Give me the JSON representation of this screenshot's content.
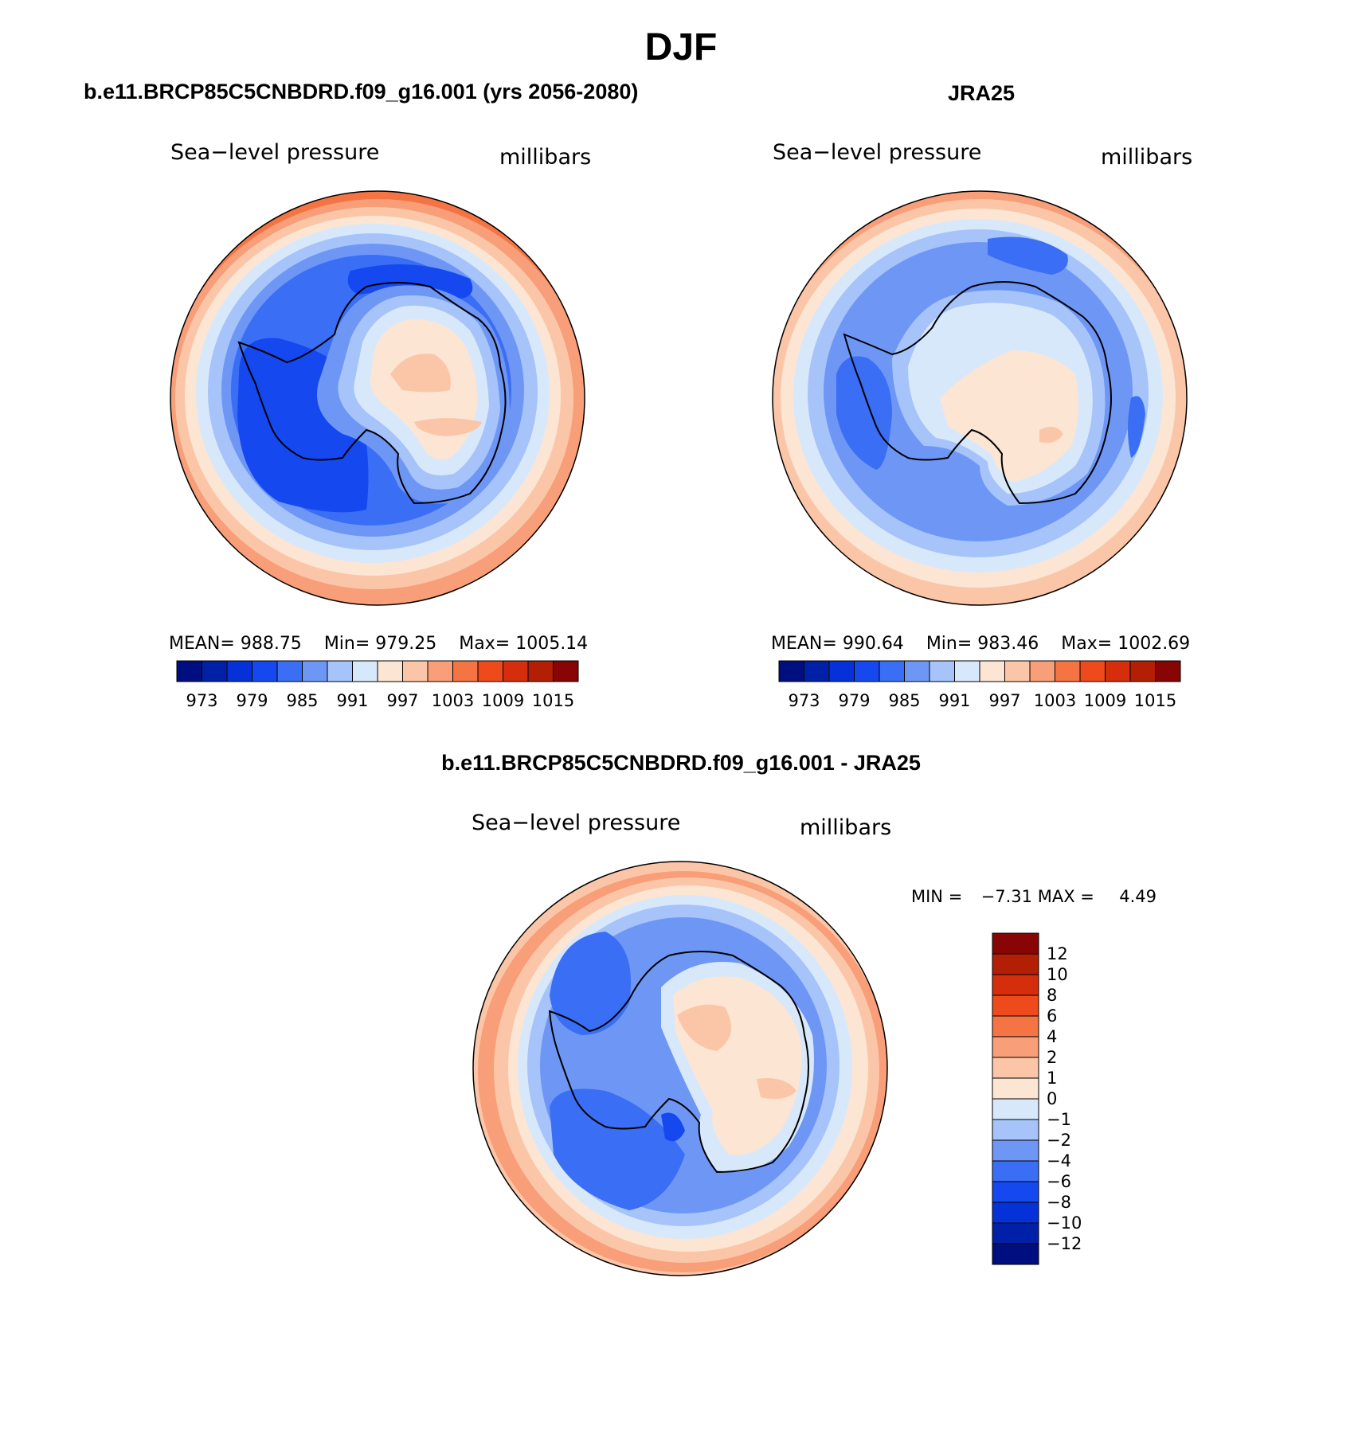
{
  "page": {
    "title": "DJF"
  },
  "panels": {
    "model": {
      "heading": "b.e11.BRCP85C5CNBDRD.f09_g16.001 (yrs 2056-2080)",
      "left_label": "Sea−level pressure",
      "right_label": "millibars",
      "stats": {
        "mean_label": "MEAN=",
        "mean": "988.75",
        "min_label": "Min=",
        "min": "979.25",
        "max_label": "Max=",
        "max": "1005.14"
      }
    },
    "obs": {
      "heading": "JRA25",
      "left_label": "Sea−level pressure",
      "right_label": "millibars",
      "stats": {
        "mean_label": "MEAN=",
        "mean": "990.64",
        "min_label": "Min=",
        "min": "983.46",
        "max_label": "Max=",
        "max": "1002.69"
      }
    },
    "diff": {
      "heading": "b.e11.BRCP85C5CNBDRD.f09_g16.001 - JRA25",
      "left_label": "Sea−level pressure",
      "right_label": "millibars",
      "minmax": {
        "min_label": "MIN =",
        "min": "−7.31",
        "max_label": "MAX =",
        "max": "4.49"
      }
    }
  },
  "colors": {
    "field_palette": [
      "#000f7f",
      "#0020a8",
      "#0532d8",
      "#1648f0",
      "#3a6ef4",
      "#6e97f5",
      "#a6c3fa",
      "#d8e8fb",
      "#fce5d3",
      "#fbc6a8",
      "#f89e78",
      "#f57444",
      "#ee4a1c",
      "#d42e0c",
      "#b21f05",
      "#870505"
    ],
    "coastline": "#000000"
  },
  "chart_data": [
    {
      "type": "heatmap",
      "projection": "south polar stereographic",
      "title": "b.e11.BRCP85C5CNBDRD.f09_g16.001 (yrs 2056-2080)",
      "variable": "Sea-level pressure",
      "units": "millibars",
      "colorbar_orientation": "horizontal",
      "colorbar_levels": [
        970,
        973,
        976,
        979,
        982,
        985,
        988,
        991,
        994,
        997,
        1000,
        1003,
        1006,
        1009,
        1012,
        1015
      ],
      "colorbar_tick_labels": [
        "973",
        "979",
        "985",
        "991",
        "997",
        "1003",
        "1009",
        "1015"
      ],
      "mean": 988.75,
      "min": 979.25,
      "max": 1005.14
    },
    {
      "type": "heatmap",
      "projection": "south polar stereographic",
      "title": "JRA25",
      "variable": "Sea-level pressure",
      "units": "millibars",
      "colorbar_orientation": "horizontal",
      "colorbar_levels": [
        970,
        973,
        976,
        979,
        982,
        985,
        988,
        991,
        994,
        997,
        1000,
        1003,
        1006,
        1009,
        1012,
        1015
      ],
      "colorbar_tick_labels": [
        "973",
        "979",
        "985",
        "991",
        "997",
        "1003",
        "1009",
        "1015"
      ],
      "mean": 990.64,
      "min": 983.46,
      "max": 1002.69
    },
    {
      "type": "heatmap",
      "projection": "south polar stereographic",
      "title": "b.e11.BRCP85C5CNBDRD.f09_g16.001 - JRA25",
      "variable": "Sea-level pressure",
      "units": "millibars",
      "colorbar_orientation": "vertical",
      "colorbar_levels": [
        -12,
        -10,
        -8,
        -6,
        -4,
        -2,
        -1,
        0,
        1,
        2,
        4,
        6,
        8,
        10,
        12
      ],
      "colorbar_tick_labels": [
        "12",
        "10",
        "8",
        "6",
        "4",
        "2",
        "1",
        "0",
        "−1",
        "−2",
        "−4",
        "−6",
        "−8",
        "−10",
        "−12"
      ],
      "min": -7.31,
      "max": 4.49
    }
  ]
}
